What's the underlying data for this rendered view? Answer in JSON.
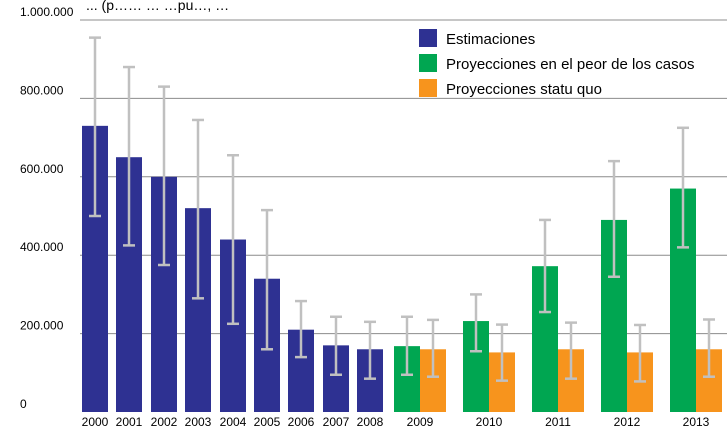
{
  "top_text": "... (p…… … …pu…, …",
  "colors": {
    "estimaciones": "#2e3192",
    "peor": "#00a651",
    "statu_quo": "#f7941d",
    "error_bar": "#c0c0c0",
    "grid": "#8c8c8c"
  },
  "chart_data": {
    "type": "bar",
    "title": "",
    "xlabel": "",
    "ylabel": "",
    "ylim": [
      0,
      1000000
    ],
    "y_ticks": [
      {
        "value": 0,
        "label": "0"
      },
      {
        "value": 200000,
        "label": "200.000"
      },
      {
        "value": 400000,
        "label": "400.000"
      },
      {
        "value": 600000,
        "label": "600.000"
      },
      {
        "value": 800000,
        "label": "800.000"
      },
      {
        "value": 1000000,
        "label": "1.000.000"
      }
    ],
    "grid": true,
    "legend_position": "top-right",
    "categories": [
      "2000",
      "2001",
      "2002",
      "2003",
      "2004",
      "2005",
      "2006",
      "2007",
      "2008",
      "2009",
      "2010",
      "2011",
      "2012",
      "2013"
    ],
    "series": [
      {
        "name": "Estimaciones",
        "color": "#2e3192",
        "values": [
          730000,
          650000,
          600000,
          520000,
          440000,
          340000,
          210000,
          170000,
          160000,
          null,
          null,
          null,
          null,
          null
        ],
        "error_low": [
          500000,
          425000,
          375000,
          290000,
          225000,
          160000,
          140000,
          95000,
          85000,
          null,
          null,
          null,
          null,
          null
        ],
        "error_high": [
          955000,
          880000,
          830000,
          745000,
          655000,
          515000,
          283000,
          243000,
          230000,
          null,
          null,
          null,
          null,
          null
        ]
      },
      {
        "name": "Proyecciones en el peor de los casos",
        "color": "#00a651",
        "values": [
          null,
          null,
          null,
          null,
          null,
          null,
          null,
          null,
          null,
          168000,
          232000,
          372000,
          490000,
          570000
        ],
        "error_low": [
          null,
          null,
          null,
          null,
          null,
          null,
          null,
          null,
          null,
          95000,
          155000,
          255000,
          345000,
          420000
        ],
        "error_high": [
          null,
          null,
          null,
          null,
          null,
          null,
          null,
          null,
          null,
          243000,
          300000,
          490000,
          640000,
          725000
        ]
      },
      {
        "name": "Proyecciones statu quo",
        "color": "#f7941d",
        "values": [
          null,
          null,
          null,
          null,
          null,
          null,
          null,
          null,
          null,
          160000,
          152000,
          160000,
          152000,
          160000
        ],
        "error_low": [
          null,
          null,
          null,
          null,
          null,
          null,
          null,
          null,
          null,
          90000,
          80000,
          85000,
          78000,
          90000
        ],
        "error_high": [
          null,
          null,
          null,
          null,
          null,
          null,
          null,
          null,
          null,
          235000,
          223000,
          228000,
          222000,
          236000
        ]
      }
    ]
  }
}
